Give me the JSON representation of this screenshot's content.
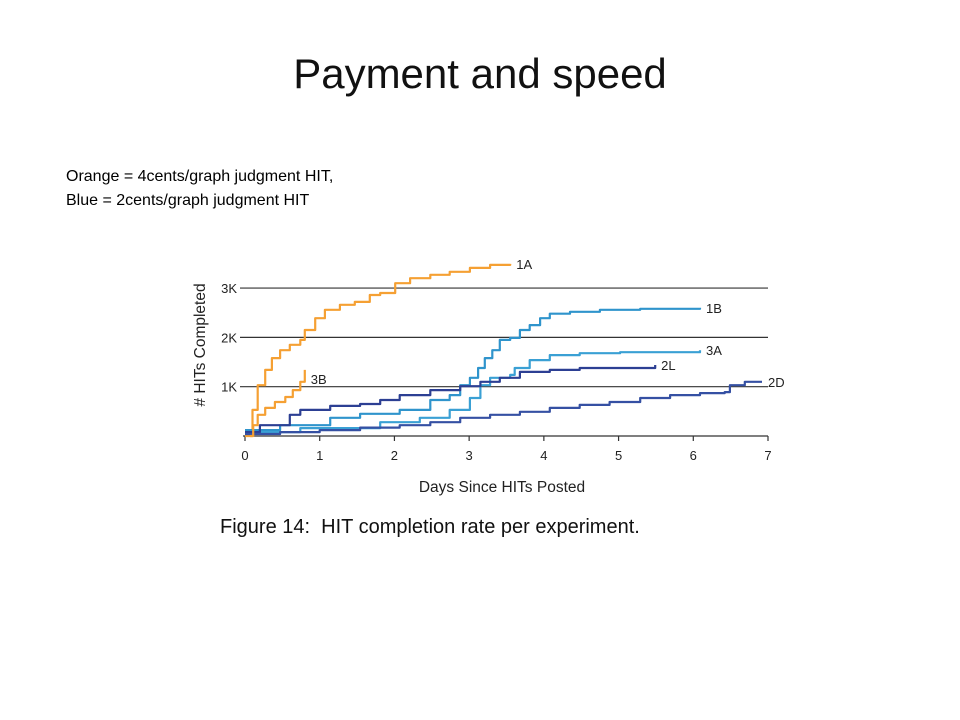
{
  "slide": {
    "title": "Payment and speed",
    "notes": [
      "Orange = 4cents/graph judgment HIT,",
      "Blue = 2cents/graph judgment HIT"
    ]
  },
  "chart_data": {
    "type": "line",
    "caption": "Figure 14:  HIT completion rate per experiment.",
    "xlabel": "Days Since HITs Posted",
    "ylabel": "# HITs Completed",
    "xlim": [
      0,
      7
    ],
    "ylim": [
      0,
      3600
    ],
    "x_ticks": [
      0,
      1,
      2,
      3,
      4,
      5,
      6,
      7
    ],
    "y_ticks": [
      {
        "value": 1000,
        "label": "1K"
      },
      {
        "value": 2000,
        "label": "2K"
      },
      {
        "value": 3000,
        "label": "3K"
      }
    ],
    "grid": true,
    "series": [
      {
        "name": "1A",
        "color": "#f5a033",
        "points": [
          [
            0,
            0
          ],
          [
            0.1,
            530
          ],
          [
            0.17,
            1030
          ],
          [
            0.27,
            1340
          ],
          [
            0.36,
            1580
          ],
          [
            0.47,
            1740
          ],
          [
            0.6,
            1850
          ],
          [
            0.74,
            1950
          ],
          [
            0.8,
            2150
          ],
          [
            0.94,
            2390
          ],
          [
            1.07,
            2560
          ],
          [
            1.27,
            2660
          ],
          [
            1.47,
            2720
          ],
          [
            1.67,
            2860
          ],
          [
            1.81,
            2900
          ],
          [
            2.01,
            3100
          ],
          [
            2.21,
            3200
          ],
          [
            2.48,
            3270
          ],
          [
            2.74,
            3330
          ],
          [
            3.01,
            3410
          ],
          [
            3.28,
            3470
          ],
          [
            3.55,
            3490
          ]
        ]
      },
      {
        "name": "1B",
        "color": "#2f94cc",
        "points": [
          [
            0,
            120
          ],
          [
            0.47,
            220
          ],
          [
            1.14,
            370
          ],
          [
            1.54,
            450
          ],
          [
            2.07,
            530
          ],
          [
            2.48,
            730
          ],
          [
            2.74,
            830
          ],
          [
            2.88,
            1030
          ],
          [
            3.01,
            1180
          ],
          [
            3.12,
            1380
          ],
          [
            3.21,
            1580
          ],
          [
            3.31,
            1740
          ],
          [
            3.41,
            1950
          ],
          [
            3.55,
            1990
          ],
          [
            3.68,
            2150
          ],
          [
            3.81,
            2250
          ],
          [
            3.95,
            2390
          ],
          [
            4.08,
            2480
          ],
          [
            4.35,
            2520
          ],
          [
            4.75,
            2560
          ],
          [
            5.29,
            2580
          ],
          [
            6.09,
            2600
          ]
        ]
      },
      {
        "name": "3A",
        "color": "#3aa0d4",
        "points": [
          [
            0,
            80
          ],
          [
            0.74,
            160
          ],
          [
            1.81,
            280
          ],
          [
            2.34,
            370
          ],
          [
            2.74,
            530
          ],
          [
            3.01,
            770
          ],
          [
            3.15,
            1030
          ],
          [
            3.28,
            1180
          ],
          [
            3.55,
            1240
          ],
          [
            3.61,
            1380
          ],
          [
            3.81,
            1540
          ],
          [
            4.08,
            1640
          ],
          [
            4.48,
            1680
          ],
          [
            5.02,
            1700
          ],
          [
            6.09,
            1740
          ]
        ]
      },
      {
        "name": "2L",
        "color": "#2c3f93",
        "points": [
          [
            0,
            80
          ],
          [
            0.2,
            220
          ],
          [
            0.6,
            430
          ],
          [
            0.74,
            530
          ],
          [
            1.14,
            610
          ],
          [
            1.54,
            650
          ],
          [
            1.81,
            730
          ],
          [
            2.07,
            830
          ],
          [
            2.48,
            930
          ],
          [
            2.88,
            1010
          ],
          [
            3.15,
            1100
          ],
          [
            3.41,
            1180
          ],
          [
            3.68,
            1300
          ],
          [
            4.08,
            1340
          ],
          [
            4.48,
            1380
          ],
          [
            5.49,
            1440
          ]
        ]
      },
      {
        "name": "2D",
        "color": "#3550a3",
        "points": [
          [
            0,
            40
          ],
          [
            0.47,
            80
          ],
          [
            1.0,
            120
          ],
          [
            1.54,
            170
          ],
          [
            2.07,
            220
          ],
          [
            2.48,
            280
          ],
          [
            2.88,
            370
          ],
          [
            3.28,
            430
          ],
          [
            3.68,
            490
          ],
          [
            4.08,
            570
          ],
          [
            4.48,
            630
          ],
          [
            4.88,
            690
          ],
          [
            5.29,
            770
          ],
          [
            5.69,
            830
          ],
          [
            6.09,
            870
          ],
          [
            6.42,
            890
          ],
          [
            6.49,
            1030
          ],
          [
            6.69,
            1100
          ],
          [
            6.92,
            1100
          ]
        ]
      },
      {
        "name": "3B",
        "color": "#f5a033",
        "points": [
          [
            0.07,
            0
          ],
          [
            0.11,
            220
          ],
          [
            0.17,
            430
          ],
          [
            0.27,
            570
          ],
          [
            0.4,
            690
          ],
          [
            0.54,
            790
          ],
          [
            0.64,
            930
          ],
          [
            0.74,
            1100
          ],
          [
            0.8,
            1340
          ]
        ]
      }
    ]
  }
}
